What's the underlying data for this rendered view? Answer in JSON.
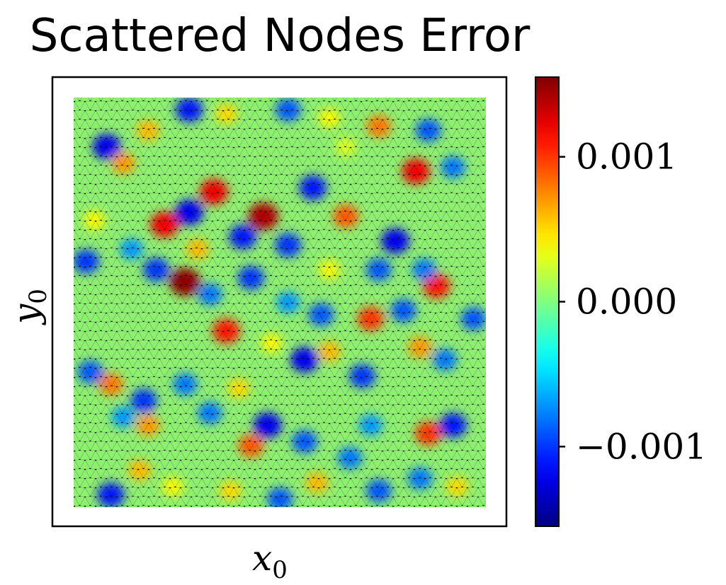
{
  "chart_data": {
    "type": "heatmap",
    "title": "Scattered Nodes Error",
    "xlabel": "x",
    "xlabel_sub": "0",
    "ylabel": "y",
    "ylabel_sub": "0",
    "colormap": "jet",
    "colorbar": {
      "range": [
        -0.00155,
        0.00155
      ],
      "ticks": [
        -0.001,
        0.0,
        0.001
      ],
      "tick_labels": [
        "−0.001",
        "0.000",
        "0.001"
      ]
    },
    "blobs": [
      {
        "x": 0.08,
        "y": 0.88,
        "value": -0.0012
      },
      {
        "x": 0.12,
        "y": 0.84,
        "value": 0.0007
      },
      {
        "x": 0.18,
        "y": 0.92,
        "value": 0.0006
      },
      {
        "x": 0.28,
        "y": 0.97,
        "value": -0.0011
      },
      {
        "x": 0.37,
        "y": 0.96,
        "value": 0.0005
      },
      {
        "x": 0.52,
        "y": 0.97,
        "value": -0.0009
      },
      {
        "x": 0.62,
        "y": 0.95,
        "value": 0.0004
      },
      {
        "x": 0.74,
        "y": 0.93,
        "value": 0.0008
      },
      {
        "x": 0.86,
        "y": 0.92,
        "value": -0.0009
      },
      {
        "x": 0.92,
        "y": 0.83,
        "value": -0.0008
      },
      {
        "x": 0.83,
        "y": 0.82,
        "value": 0.0012
      },
      {
        "x": 0.58,
        "y": 0.78,
        "value": -0.0011
      },
      {
        "x": 0.34,
        "y": 0.77,
        "value": 0.0012
      },
      {
        "x": 0.28,
        "y": 0.72,
        "value": -0.0012
      },
      {
        "x": 0.22,
        "y": 0.69,
        "value": 0.0012
      },
      {
        "x": 0.46,
        "y": 0.71,
        "value": 0.0014
      },
      {
        "x": 0.52,
        "y": 0.64,
        "value": -0.001
      },
      {
        "x": 0.41,
        "y": 0.66,
        "value": -0.0011
      },
      {
        "x": 0.66,
        "y": 0.71,
        "value": 0.0009
      },
      {
        "x": 0.78,
        "y": 0.65,
        "value": -0.0012
      },
      {
        "x": 0.74,
        "y": 0.58,
        "value": -0.0009
      },
      {
        "x": 0.88,
        "y": 0.54,
        "value": 0.0011
      },
      {
        "x": 0.85,
        "y": 0.58,
        "value": -0.0008
      },
      {
        "x": 0.97,
        "y": 0.46,
        "value": -0.0009
      },
      {
        "x": 0.03,
        "y": 0.6,
        "value": -0.001
      },
      {
        "x": 0.14,
        "y": 0.63,
        "value": -0.0007
      },
      {
        "x": 0.2,
        "y": 0.58,
        "value": -0.001
      },
      {
        "x": 0.27,
        "y": 0.55,
        "value": 0.0015
      },
      {
        "x": 0.33,
        "y": 0.52,
        "value": -0.0008
      },
      {
        "x": 0.43,
        "y": 0.56,
        "value": -0.001
      },
      {
        "x": 0.37,
        "y": 0.43,
        "value": 0.0011
      },
      {
        "x": 0.52,
        "y": 0.5,
        "value": -0.0007
      },
      {
        "x": 0.6,
        "y": 0.47,
        "value": -0.0009
      },
      {
        "x": 0.72,
        "y": 0.46,
        "value": 0.001
      },
      {
        "x": 0.8,
        "y": 0.48,
        "value": -0.0009
      },
      {
        "x": 0.62,
        "y": 0.38,
        "value": 0.0006
      },
      {
        "x": 0.56,
        "y": 0.36,
        "value": -0.0012
      },
      {
        "x": 0.7,
        "y": 0.32,
        "value": -0.001
      },
      {
        "x": 0.84,
        "y": 0.39,
        "value": 0.0007
      },
      {
        "x": 0.9,
        "y": 0.36,
        "value": -0.0008
      },
      {
        "x": 0.04,
        "y": 0.33,
        "value": -0.0009
      },
      {
        "x": 0.09,
        "y": 0.3,
        "value": 0.0008
      },
      {
        "x": 0.17,
        "y": 0.26,
        "value": -0.001
      },
      {
        "x": 0.12,
        "y": 0.22,
        "value": -0.0007
      },
      {
        "x": 0.18,
        "y": 0.2,
        "value": 0.0007
      },
      {
        "x": 0.27,
        "y": 0.3,
        "value": -0.0008
      },
      {
        "x": 0.4,
        "y": 0.29,
        "value": 0.0005
      },
      {
        "x": 0.47,
        "y": 0.2,
        "value": -0.0012
      },
      {
        "x": 0.43,
        "y": 0.15,
        "value": 0.0009
      },
      {
        "x": 0.33,
        "y": 0.23,
        "value": -0.0008
      },
      {
        "x": 0.56,
        "y": 0.16,
        "value": -0.0009
      },
      {
        "x": 0.72,
        "y": 0.2,
        "value": -0.0007
      },
      {
        "x": 0.86,
        "y": 0.18,
        "value": 0.001
      },
      {
        "x": 0.92,
        "y": 0.2,
        "value": -0.0011
      },
      {
        "x": 0.67,
        "y": 0.12,
        "value": -0.0008
      },
      {
        "x": 0.16,
        "y": 0.09,
        "value": 0.0006
      },
      {
        "x": 0.09,
        "y": 0.03,
        "value": -0.0011
      },
      {
        "x": 0.24,
        "y": 0.05,
        "value": 0.0004
      },
      {
        "x": 0.38,
        "y": 0.04,
        "value": 0.0005
      },
      {
        "x": 0.5,
        "y": 0.02,
        "value": -0.0009
      },
      {
        "x": 0.59,
        "y": 0.06,
        "value": 0.0006
      },
      {
        "x": 0.74,
        "y": 0.04,
        "value": -0.0009
      },
      {
        "x": 0.84,
        "y": 0.07,
        "value": -0.0008
      },
      {
        "x": 0.93,
        "y": 0.05,
        "value": 0.0005
      },
      {
        "x": 0.3,
        "y": 0.63,
        "value": 0.0006
      },
      {
        "x": 0.62,
        "y": 0.58,
        "value": 0.0004
      },
      {
        "x": 0.48,
        "y": 0.4,
        "value": 0.0004
      },
      {
        "x": 0.05,
        "y": 0.7,
        "value": 0.0004
      },
      {
        "x": 0.66,
        "y": 0.88,
        "value": 0.0003
      }
    ]
  }
}
